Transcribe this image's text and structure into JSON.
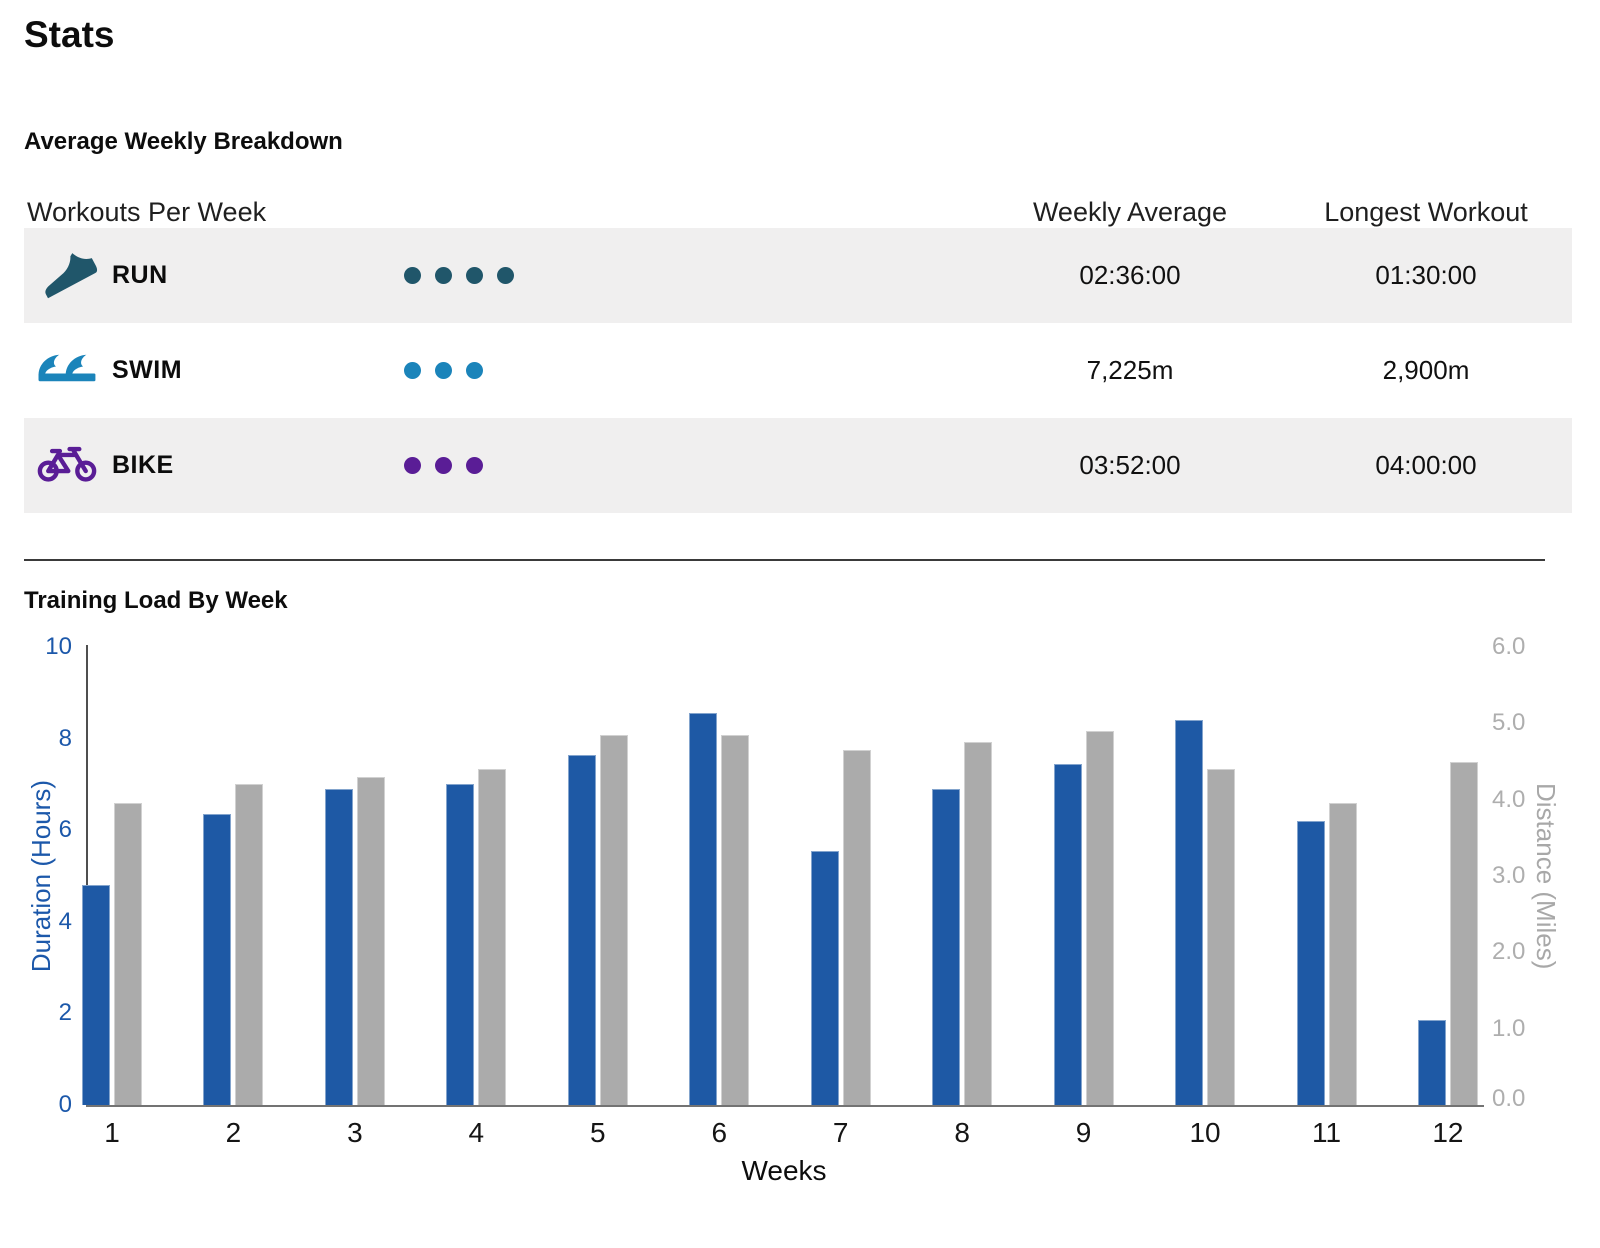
{
  "page": {
    "title": "Stats"
  },
  "breakdown": {
    "heading": "Average Weekly Breakdown",
    "columns": {
      "workouts": "Workouts Per Week",
      "weekly_average": "Weekly Average",
      "longest_workout": "Longest Workout"
    },
    "rows": [
      {
        "sport": "RUN",
        "icon": "running-shoe-icon",
        "color": "#20566a",
        "workouts_per_week": 4,
        "weekly_average": "02:36:00",
        "longest_workout": "01:30:00"
      },
      {
        "sport": "SWIM",
        "icon": "wave-icon",
        "color": "#1b84ba",
        "workouts_per_week": 3,
        "weekly_average": "7,225m",
        "longest_workout": "2,900m"
      },
      {
        "sport": "BIKE",
        "icon": "bicycle-icon",
        "color": "#5a1d96",
        "workouts_per_week": 3,
        "weekly_average": "03:52:00",
        "longest_workout": "04:00:00"
      }
    ]
  },
  "chart_data": {
    "type": "bar",
    "title": "Training Load By Week",
    "categories": [
      "1",
      "2",
      "3",
      "4",
      "5",
      "6",
      "7",
      "8",
      "9",
      "10",
      "11",
      "12"
    ],
    "series": [
      {
        "name": "Duration",
        "axis": "left",
        "color": "#1e59a5",
        "values": [
          4.8,
          6.35,
          6.9,
          7.0,
          7.65,
          8.55,
          5.55,
          6.9,
          7.45,
          8.4,
          6.2,
          1.85
        ]
      },
      {
        "name": "Distance",
        "axis": "right",
        "color": "#ababab",
        "values": [
          3.95,
          4.2,
          4.3,
          4.4,
          4.85,
          4.85,
          4.65,
          4.75,
          4.9,
          4.4,
          3.95,
          4.5
        ]
      }
    ],
    "xlabel": "Weeks",
    "left_axis": {
      "label": "Duration (Hours)",
      "min": 0,
      "max": 10,
      "ticks": [
        0,
        2,
        4,
        6,
        8,
        10
      ],
      "color": "#1c58aa"
    },
    "right_axis": {
      "label": "Distance (Miles)",
      "min": 0,
      "max": 6,
      "ticks": [
        "0.0",
        "1.0",
        "2.0",
        "3.0",
        "4.0",
        "5.0",
        "6.0"
      ],
      "color": "#a8a8a8"
    },
    "grid": false,
    "legend": "none"
  }
}
